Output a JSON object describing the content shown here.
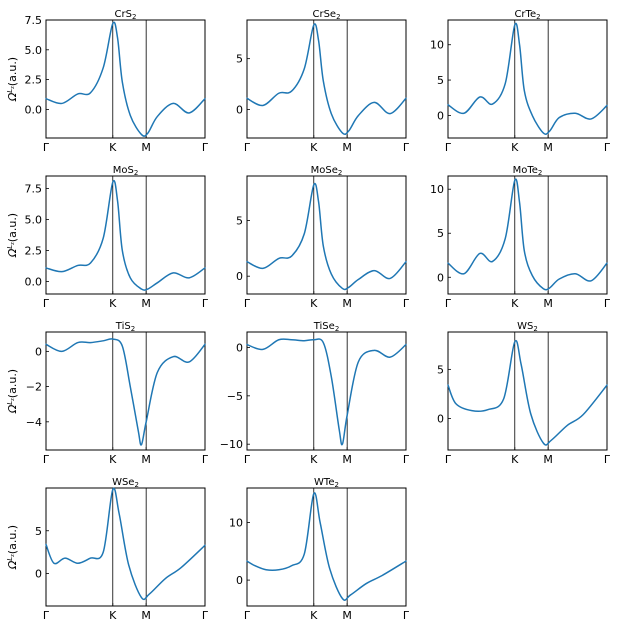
{
  "figure": {
    "ylabel_main": "Ω",
    "ylabel_sup": "L",
    "ylabel_sub": "z",
    "ylabel_unit": "(a.u.)"
  },
  "chart_data": [
    {
      "type": "line",
      "title": "CrS",
      "title_sub": "2",
      "xticks": [
        "Γ",
        "K",
        "M",
        "Γ"
      ],
      "ylim": [
        -2.4,
        7.5
      ],
      "yticks": [
        0.0,
        2.5,
        5.0,
        7.5
      ],
      "ytick_labels": [
        "0.0",
        "2.5",
        "5.0",
        "7.5"
      ],
      "show_ylabel": true,
      "x": [
        0,
        0.1,
        0.2,
        0.28,
        0.36,
        0.42,
        0.45,
        0.48,
        0.53,
        0.6,
        0.64,
        0.7,
        0.8,
        0.9,
        1.0
      ],
      "y": [
        0.9,
        0.5,
        1.3,
        1.4,
        3.5,
        7.2,
        6.0,
        2.3,
        -0.5,
        -2.1,
        -2.0,
        -0.6,
        0.5,
        -0.3,
        0.9
      ]
    },
    {
      "type": "line",
      "title": "CrSe",
      "title_sub": "2",
      "xticks": [
        "Γ",
        "K",
        "M",
        "Γ"
      ],
      "ylim": [
        -2.8,
        8.8
      ],
      "yticks": [
        0,
        5
      ],
      "ytick_labels": [
        "0",
        "5"
      ],
      "show_ylabel": false,
      "x": [
        0,
        0.1,
        0.2,
        0.28,
        0.36,
        0.42,
        0.45,
        0.48,
        0.53,
        0.6,
        0.64,
        0.7,
        0.8,
        0.9,
        1.0
      ],
      "y": [
        1.1,
        0.4,
        1.6,
        1.8,
        4.0,
        8.3,
        6.8,
        2.8,
        -0.4,
        -2.3,
        -2.1,
        -0.6,
        0.7,
        -0.4,
        1.1
      ]
    },
    {
      "type": "line",
      "title": "CrTe",
      "title_sub": "2",
      "xticks": [
        "Γ",
        "K",
        "M",
        "Γ"
      ],
      "ylim": [
        -3.2,
        13.5
      ],
      "yticks": [
        0,
        5,
        10
      ],
      "ytick_labels": [
        "0",
        "5",
        "10"
      ],
      "show_ylabel": false,
      "x": [
        0,
        0.1,
        0.2,
        0.28,
        0.36,
        0.42,
        0.45,
        0.48,
        0.53,
        0.6,
        0.64,
        0.7,
        0.8,
        0.9,
        1.0
      ],
      "y": [
        1.5,
        0.3,
        2.6,
        1.6,
        4.5,
        12.8,
        10.0,
        3.5,
        0.0,
        -2.5,
        -2.2,
        -0.3,
        0.3,
        -0.5,
        1.4
      ]
    },
    {
      "type": "line",
      "title": "MoS",
      "title_sub": "2",
      "xticks": [
        "Γ",
        "K",
        "M",
        "Γ"
      ],
      "ylim": [
        -1.0,
        8.5
      ],
      "yticks": [
        0.0,
        2.5,
        5.0,
        7.5
      ],
      "ytick_labels": [
        "0.0",
        "2.5",
        "5.0",
        "7.5"
      ],
      "show_ylabel": true,
      "x": [
        0,
        0.1,
        0.2,
        0.28,
        0.36,
        0.42,
        0.45,
        0.48,
        0.53,
        0.6,
        0.64,
        0.7,
        0.8,
        0.9,
        1.0
      ],
      "y": [
        1.1,
        0.8,
        1.3,
        1.5,
        3.5,
        8.0,
        6.5,
        2.5,
        0.3,
        -0.6,
        -0.6,
        -0.1,
        0.7,
        0.3,
        1.1
      ]
    },
    {
      "type": "line",
      "title": "MoSe",
      "title_sub": "2",
      "xticks": [
        "Γ",
        "K",
        "M",
        "Γ"
      ],
      "ylim": [
        -1.6,
        9.0
      ],
      "yticks": [
        0,
        5
      ],
      "ytick_labels": [
        "0",
        "5"
      ],
      "show_ylabel": false,
      "x": [
        0,
        0.1,
        0.2,
        0.28,
        0.36,
        0.42,
        0.45,
        0.48,
        0.53,
        0.6,
        0.64,
        0.7,
        0.8,
        0.9,
        1.0
      ],
      "y": [
        1.3,
        0.7,
        1.6,
        1.8,
        3.8,
        8.2,
        6.7,
        2.7,
        0.2,
        -1.1,
        -1.0,
        -0.3,
        0.5,
        -0.2,
        1.3
      ]
    },
    {
      "type": "line",
      "title": "MoTe",
      "title_sub": "2",
      "xticks": [
        "Γ",
        "K",
        "M",
        "Γ"
      ],
      "ylim": [
        -1.9,
        11.5
      ],
      "yticks": [
        0,
        5,
        10
      ],
      "ytick_labels": [
        "0",
        "5",
        "10"
      ],
      "show_ylabel": false,
      "x": [
        0,
        0.1,
        0.2,
        0.28,
        0.36,
        0.42,
        0.45,
        0.48,
        0.53,
        0.6,
        0.64,
        0.7,
        0.8,
        0.9,
        1.0
      ],
      "y": [
        1.6,
        0.4,
        2.7,
        1.8,
        4.4,
        11.0,
        8.5,
        3.0,
        0.2,
        -1.3,
        -1.2,
        -0.2,
        0.4,
        -0.4,
        1.6
      ]
    },
    {
      "type": "line",
      "title": "TiS",
      "title_sub": "2",
      "xticks": [
        "Γ",
        "K",
        "M",
        "Γ"
      ],
      "ylim": [
        -5.6,
        1.1
      ],
      "yticks": [
        -4,
        -2,
        0
      ],
      "ytick_labels": [
        "−4",
        "−2",
        "0"
      ],
      "show_ylabel": true,
      "x": [
        0,
        0.1,
        0.2,
        0.28,
        0.36,
        0.42,
        0.48,
        0.53,
        0.58,
        0.6,
        0.63,
        0.7,
        0.8,
        0.9,
        1.0
      ],
      "y": [
        0.4,
        0.0,
        0.5,
        0.5,
        0.6,
        0.7,
        0.3,
        -2.0,
        -4.5,
        -5.3,
        -4.0,
        -1.2,
        -0.3,
        -0.6,
        0.4
      ]
    },
    {
      "type": "line",
      "title": "TiSe",
      "title_sub": "2",
      "xticks": [
        "Γ",
        "K",
        "M",
        "Γ"
      ],
      "ylim": [
        -10.6,
        1.6
      ],
      "yticks": [
        -10,
        -5,
        0
      ],
      "ytick_labels": [
        "−10",
        "−5",
        "0"
      ],
      "show_ylabel": false,
      "x": [
        0,
        0.1,
        0.2,
        0.28,
        0.36,
        0.42,
        0.48,
        0.53,
        0.58,
        0.6,
        0.63,
        0.7,
        0.8,
        0.9,
        1.0
      ],
      "y": [
        0.3,
        -0.2,
        0.8,
        0.8,
        0.7,
        0.8,
        0.5,
        -3.0,
        -8.5,
        -10.0,
        -7.0,
        -1.5,
        -0.3,
        -1.0,
        0.3
      ]
    },
    {
      "type": "line",
      "title": "WS",
      "title_sub": "2",
      "xticks": [
        "Γ",
        "K",
        "M",
        "Γ"
      ],
      "ylim": [
        -3.2,
        8.8
      ],
      "yticks": [
        0,
        5
      ],
      "ytick_labels": [
        "0",
        "5"
      ],
      "show_ylabel": false,
      "x": [
        0,
        0.05,
        0.15,
        0.25,
        0.35,
        0.42,
        0.46,
        0.52,
        0.6,
        0.65,
        0.75,
        0.85,
        1.0
      ],
      "y": [
        3.4,
        1.5,
        0.8,
        0.9,
        2.0,
        7.8,
        5.5,
        0.5,
        -2.5,
        -2.2,
        -0.7,
        0.4,
        3.4
      ]
    },
    {
      "type": "line",
      "title": "WSe",
      "title_sub": "2",
      "xticks": [
        "Γ",
        "K",
        "M",
        "Γ"
      ],
      "ylim": [
        -3.8,
        10.0
      ],
      "yticks": [
        0,
        5
      ],
      "ytick_labels": [
        "0",
        "5"
      ],
      "show_ylabel": true,
      "x": [
        0,
        0.05,
        0.12,
        0.2,
        0.28,
        0.36,
        0.42,
        0.46,
        0.52,
        0.6,
        0.65,
        0.75,
        0.85,
        1.0
      ],
      "y": [
        3.4,
        1.2,
        1.8,
        1.2,
        1.8,
        2.5,
        9.8,
        7.0,
        1.0,
        -2.8,
        -2.4,
        -0.6,
        0.7,
        3.3
      ]
    },
    {
      "type": "line",
      "title": "WTe",
      "title_sub": "2",
      "xticks": [
        "Γ",
        "K",
        "M",
        "Γ"
      ],
      "ylim": [
        -4.5,
        16.0
      ],
      "yticks": [
        0,
        10
      ],
      "ytick_labels": [
        "0",
        "10"
      ],
      "show_ylabel": false,
      "x": [
        0,
        0.05,
        0.12,
        0.2,
        0.28,
        0.36,
        0.42,
        0.46,
        0.52,
        0.6,
        0.65,
        0.75,
        0.85,
        1.0
      ],
      "y": [
        3.3,
        2.5,
        1.8,
        1.8,
        2.5,
        4.5,
        15.0,
        10.0,
        2.0,
        -3.2,
        -2.6,
        -0.6,
        0.8,
        3.3
      ]
    }
  ]
}
